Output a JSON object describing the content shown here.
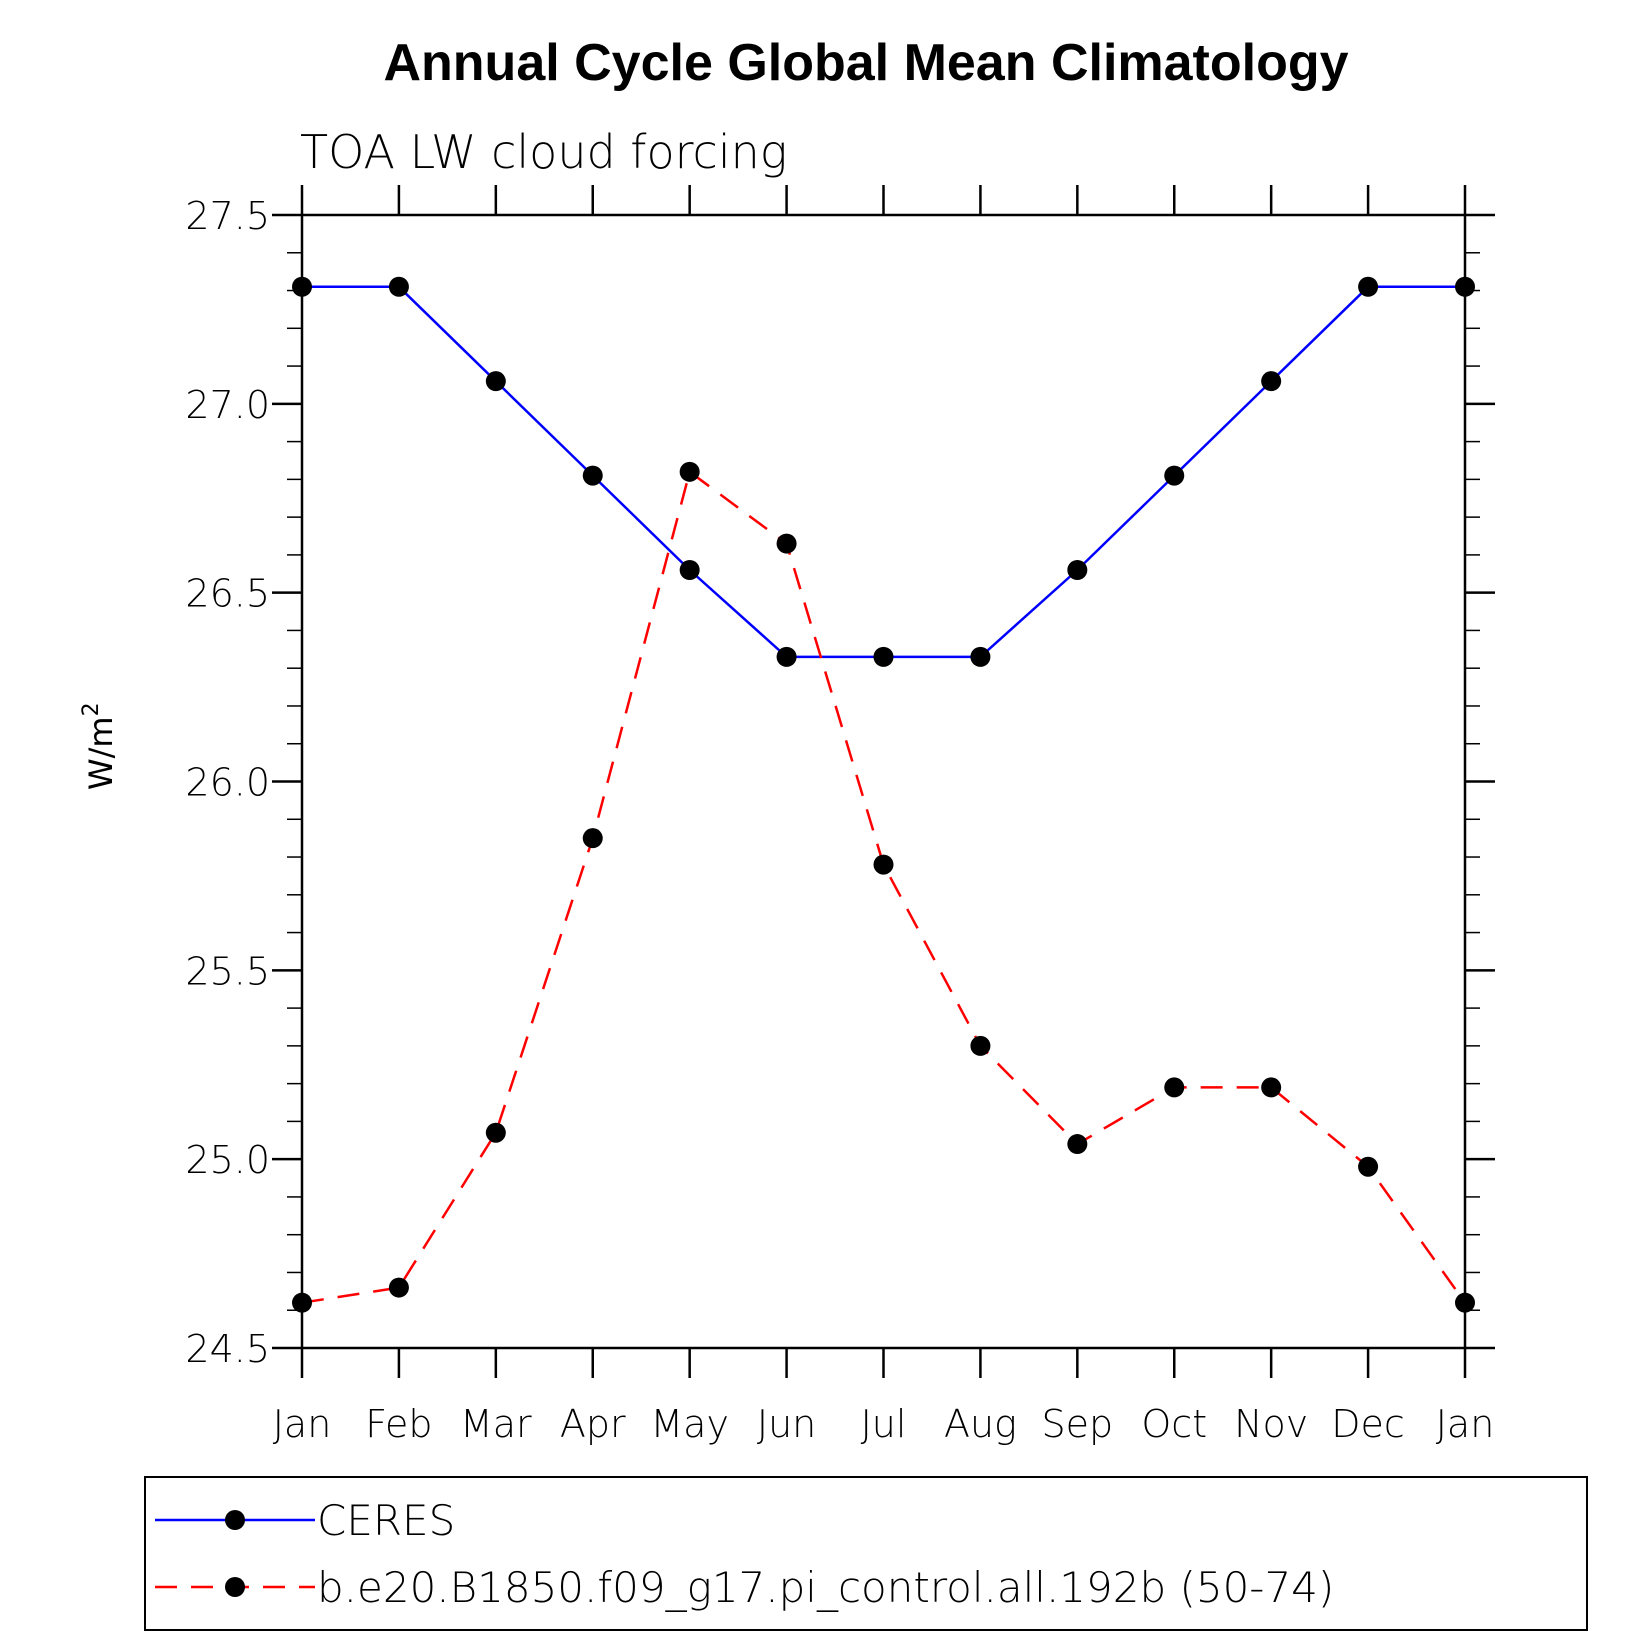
{
  "chart_data": {
    "type": "line",
    "title": "Annual Cycle Global Mean Climatology",
    "subtitle": "TOA LW cloud forcing",
    "xlabel": "",
    "ylabel": "W/m",
    "ylabel_superscript": "2",
    "categories": [
      "Jan",
      "Feb",
      "Mar",
      "Apr",
      "May",
      "Jun",
      "Jul",
      "Aug",
      "Sep",
      "Oct",
      "Nov",
      "Dec",
      "Jan"
    ],
    "ylim": [
      24.5,
      27.5
    ],
    "yticks": [
      24.5,
      25.0,
      25.5,
      26.0,
      26.5,
      27.0,
      27.5
    ],
    "ytick_labels": [
      "24.5",
      "25.0",
      "25.5",
      "26.0",
      "26.5",
      "27.0",
      "27.5"
    ],
    "y_minor_step": 0.1,
    "grid": false,
    "legend_position": "bottom",
    "series": [
      {
        "name": "CERES",
        "color": "#0000ff",
        "style": "solid",
        "marker": "filled-circle",
        "values": [
          27.31,
          27.31,
          27.06,
          26.81,
          26.56,
          26.33,
          26.33,
          26.33,
          26.56,
          26.81,
          27.06,
          27.31,
          27.31
        ]
      },
      {
        "name": "b.e20.B1850.f09_g17.pi_control.all.192b (50-74)",
        "color": "#ff0000",
        "style": "dashed",
        "marker": "filled-circle",
        "values": [
          24.62,
          24.66,
          25.07,
          25.85,
          26.82,
          26.63,
          25.78,
          25.3,
          25.04,
          25.19,
          25.19,
          24.98,
          24.62
        ]
      }
    ]
  }
}
